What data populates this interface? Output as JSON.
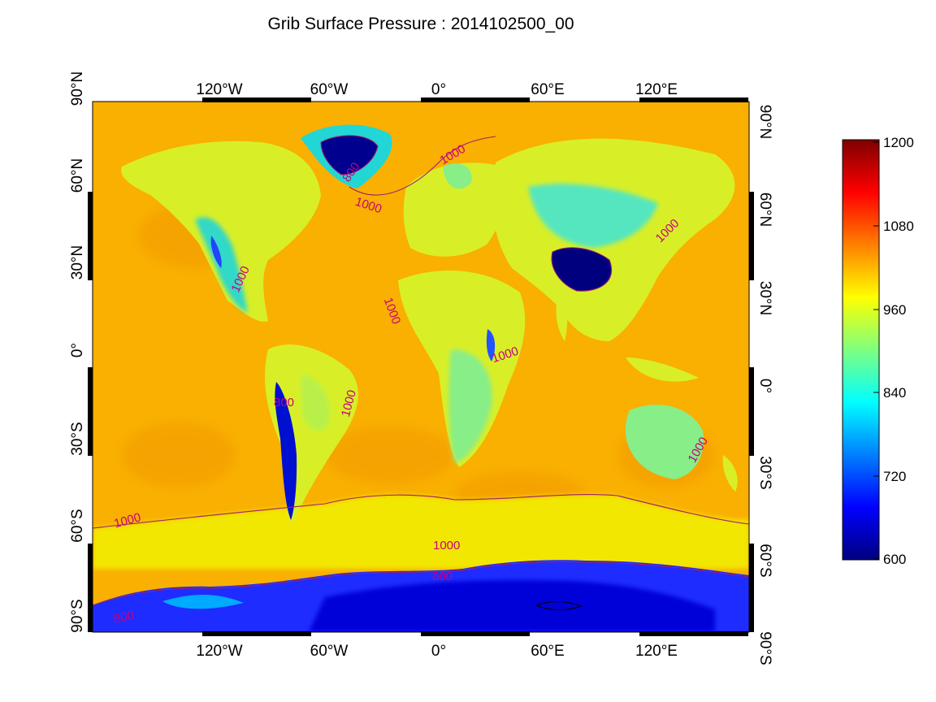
{
  "title": "Grib Surface Pressure : 2014102500_00",
  "map": {
    "top_lon_labels": [
      "120°W",
      "60°W",
      "0°",
      "60°E",
      "120°E"
    ],
    "bottom_lon_labels": [
      "120°W",
      "60°W",
      "0°",
      "60°E",
      "120°E"
    ],
    "left_lat_labels": [
      "90°N",
      "60°N",
      "30°N",
      "0°",
      "30°S",
      "60°S",
      "90°S"
    ],
    "right_lat_labels": [
      "90°N",
      "60°N",
      "30°N",
      "0°",
      "30°S",
      "60°S",
      "90°S"
    ],
    "contour_labels": [
      "1000",
      "1000",
      "1000",
      "1000",
      "1000",
      "1000",
      "1000",
      "1000",
      "1000",
      "1000",
      "800",
      "800",
      "800",
      "800"
    ]
  },
  "colorbar": {
    "tick_labels": [
      "1200",
      "1080",
      "960",
      "840",
      "720",
      "600"
    ],
    "min": 600,
    "max": 1200,
    "colors": [
      "#00007f",
      "#0000ff",
      "#007fff",
      "#00ffff",
      "#7fff7f",
      "#ffff00",
      "#ff7f00",
      "#ff0000",
      "#7f0000"
    ]
  }
}
